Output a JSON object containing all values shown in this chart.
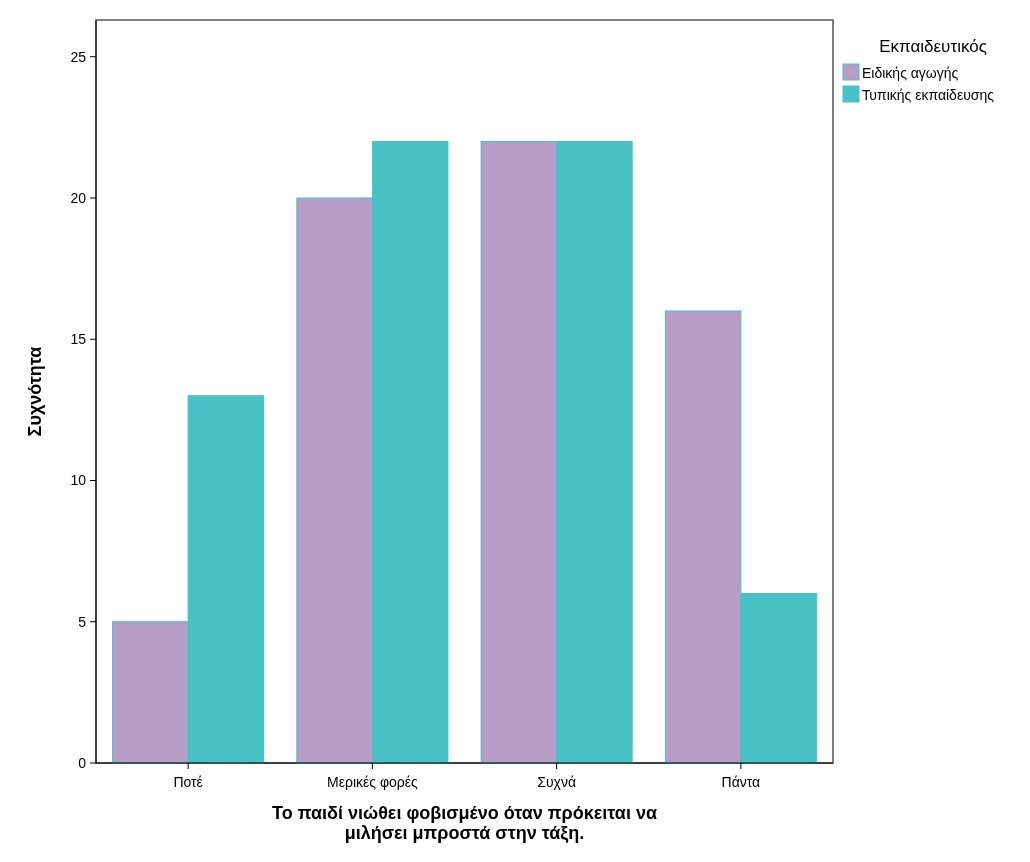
{
  "chart_data": {
    "type": "bar",
    "xlabel": "Το παιδί νιώθει φοβισμένο όταν πρόκειται να μιλήσει μπροστά στην τάξη.",
    "ylabel": "Συχνότητα",
    "legend_title": "Εκπαιδευτικός",
    "categories": [
      "Ποτέ",
      "Μερικές φορές",
      "Συχνά",
      "Πάντα"
    ],
    "series": [
      {
        "name": "Ειδικής αγωγής",
        "color": "#b89cc8",
        "values": [
          5,
          20,
          22,
          16
        ]
      },
      {
        "name": "Τυπικής εκπαίδευσης",
        "color": "#48c2c5",
        "values": [
          13,
          22,
          22,
          6
        ]
      }
    ],
    "ylim": [
      0,
      26.3
    ],
    "yticks": [
      0,
      5,
      10,
      15,
      20,
      25
    ],
    "grid": false,
    "legend": "right"
  }
}
